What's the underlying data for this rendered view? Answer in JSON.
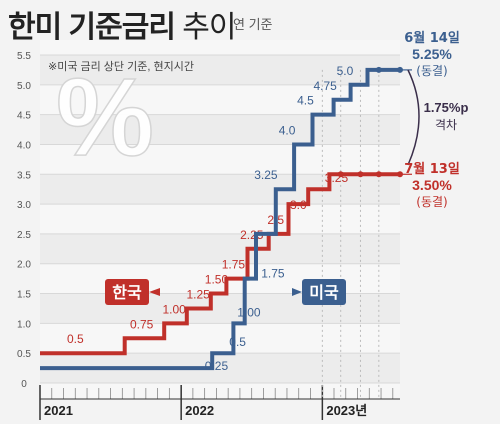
{
  "title": {
    "main": "한미 기준금리",
    "light": "추이",
    "note": "연 기준"
  },
  "subnote": "※미국 금리 상단 기준, 현지시간",
  "watermark": "%",
  "chart_data": {
    "type": "line",
    "step": true,
    "ylim": [
      0,
      6.0
    ],
    "yticks": [
      "0",
      "0.5",
      "1.0",
      "1.5",
      "2.0",
      "2.5",
      "3.0",
      "3.5",
      "4.0",
      "4.5",
      "5.0",
      "5.5"
    ],
    "x_labels": [
      "2021",
      "2022",
      "2023년"
    ],
    "grid": true,
    "series": [
      {
        "name": "한국",
        "color": "#c0302a",
        "points": [
          [
            0.0,
            0.5
          ],
          [
            0.6,
            0.5
          ],
          [
            0.6,
            0.75
          ],
          [
            0.88,
            0.75
          ],
          [
            0.88,
            1.0
          ],
          [
            1.04,
            1.0
          ],
          [
            1.04,
            1.25
          ],
          [
            1.21,
            1.25
          ],
          [
            1.21,
            1.5
          ],
          [
            1.32,
            1.5
          ],
          [
            1.32,
            1.75
          ],
          [
            1.47,
            1.75
          ],
          [
            1.47,
            2.25
          ],
          [
            1.62,
            2.25
          ],
          [
            1.62,
            2.5
          ],
          [
            1.76,
            2.5
          ],
          [
            1.76,
            3.0
          ],
          [
            1.9,
            3.0
          ],
          [
            1.9,
            3.25
          ],
          [
            2.05,
            3.25
          ],
          [
            2.05,
            3.5
          ],
          [
            2.55,
            3.5
          ]
        ],
        "labels": [
          "0.5",
          "0.75",
          "1.00",
          "1.25",
          "1.50",
          "1.75",
          "2.25",
          "2.5",
          "3.0",
          "3.25"
        ],
        "tag": "한국"
      },
      {
        "name": "미국",
        "color": "#3b5f8f",
        "points": [
          [
            0.0,
            0.25
          ],
          [
            1.22,
            0.25
          ],
          [
            1.22,
            0.5
          ],
          [
            1.37,
            0.5
          ],
          [
            1.37,
            1.0
          ],
          [
            1.45,
            1.0
          ],
          [
            1.45,
            1.75
          ],
          [
            1.53,
            1.75
          ],
          [
            1.53,
            2.5
          ],
          [
            1.67,
            2.5
          ],
          [
            1.67,
            3.25
          ],
          [
            1.8,
            3.25
          ],
          [
            1.8,
            4.0
          ],
          [
            1.93,
            4.0
          ],
          [
            1.93,
            4.5
          ],
          [
            2.08,
            4.5
          ],
          [
            2.08,
            4.75
          ],
          [
            2.2,
            4.75
          ],
          [
            2.2,
            5.0
          ],
          [
            2.32,
            5.0
          ],
          [
            2.32,
            5.25
          ],
          [
            2.55,
            5.25
          ]
        ],
        "labels": [
          "0.25",
          "0.5",
          "1.00",
          "1.75",
          "3.25",
          "4.0",
          "4.5",
          "4.75",
          "5.0"
        ],
        "tag": "미국"
      }
    ],
    "annotations": {
      "us_date": "6월 14일",
      "us_rate": "5.25%",
      "us_status": "(동결)",
      "gap_value": "1.75%p",
      "gap_label": "격차",
      "kr_date": "7월 13일",
      "kr_rate": "3.50%",
      "kr_status": "(동결)"
    }
  }
}
